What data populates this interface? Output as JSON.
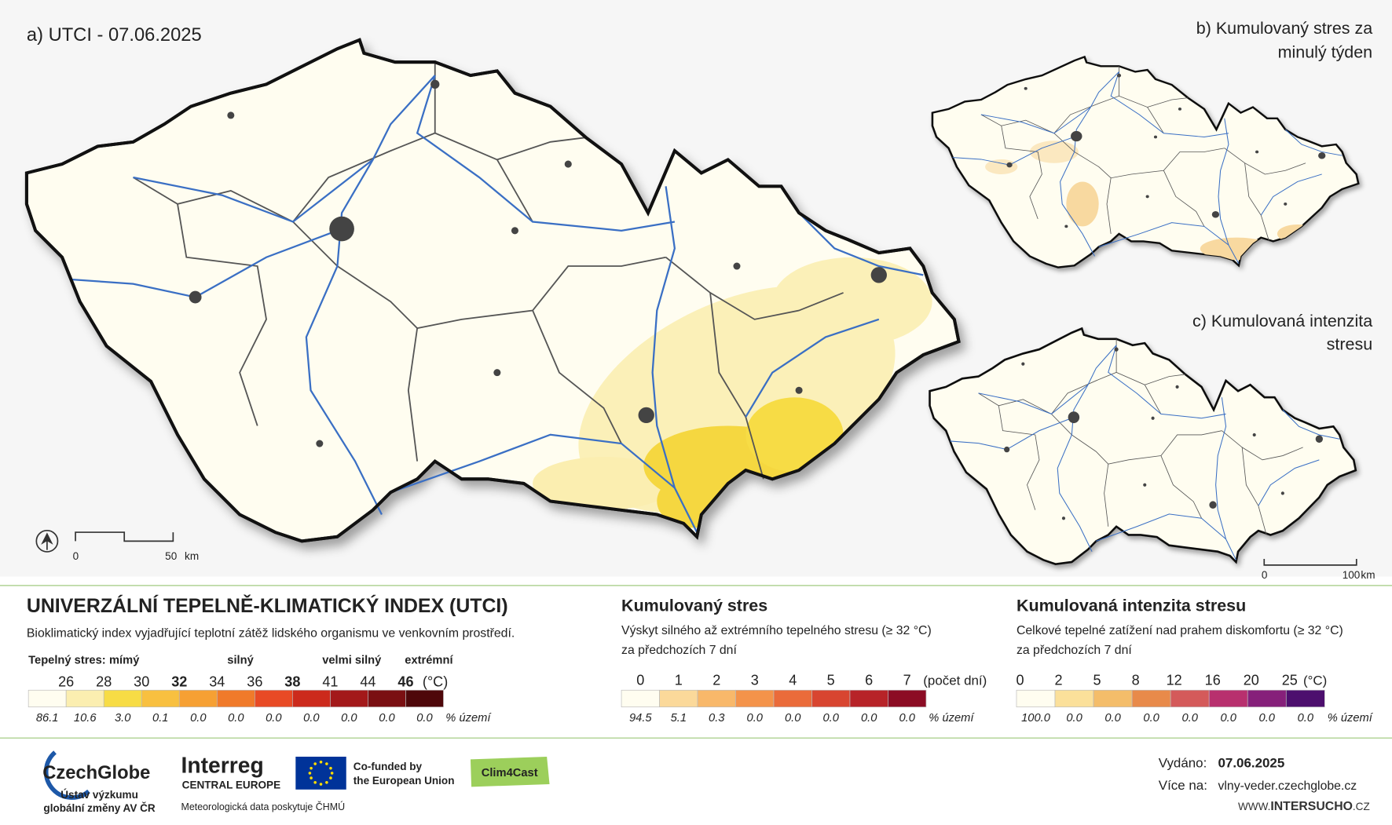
{
  "panel_a": {
    "title": "a) UTCI - 07.06.2025",
    "scale": {
      "start": "0",
      "end": "50",
      "unit": "km"
    }
  },
  "panel_b": {
    "title": [
      "b) Kumulovaný stres za",
      "minulý týden"
    ]
  },
  "panel_c": {
    "title": [
      "c) Kumulovaná intenzita",
      "stresu"
    ],
    "scale": {
      "start": "0",
      "end": "100",
      "unit": "km"
    }
  },
  "legend_utci": {
    "title": "UNIVERZÁLNÍ TEPELNĚ-KLIMATICKÝ INDEX (UTCI)",
    "description": "Bioklimatický index vyjadřující teplotní zátěž lidského organismu ve venkovním prostředí.",
    "stress_label": "Tepelný stres:",
    "stress_levels": [
      "mímý",
      "silný",
      "velmi silný",
      "extrémní"
    ],
    "thresholds": [
      "26",
      "28",
      "30",
      "32",
      "34",
      "36",
      "38",
      "41",
      "44",
      "46"
    ],
    "unit": "(°C)",
    "colors": [
      "#fffdf0",
      "#fbeeb0",
      "#f7dc45",
      "#f8c040",
      "#f6a033",
      "#f07a2a",
      "#e84a25",
      "#cc2a1c",
      "#a3191a",
      "#7a0f12",
      "#4e070a"
    ],
    "shares": [
      "86.1",
      "10.6",
      "3.0",
      "0.1",
      "0.0",
      "0.0",
      "0.0",
      "0.0",
      "0.0",
      "0.0",
      "0.0"
    ],
    "share_unit": "% území"
  },
  "legend_stress": {
    "title": "Kumulovaný stres",
    "description": [
      "Výskyt silného až extrémního tepelného stresu (≥ 32 °C)",
      "za předchozích 7 dní"
    ],
    "ticks": [
      "0",
      "1",
      "2",
      "3",
      "4",
      "5",
      "6",
      "7"
    ],
    "unit": "(počet dní)",
    "colors": [
      "#fffdf0",
      "#fbd99a",
      "#f8b86a",
      "#f4934a",
      "#ea6b3a",
      "#d84530",
      "#b72328",
      "#8c0c24"
    ],
    "shares": [
      "94.5",
      "5.1",
      "0.3",
      "0.0",
      "0.0",
      "0.0",
      "0.0",
      "0.0"
    ],
    "share_unit": "% území"
  },
  "legend_intensity": {
    "title": "Kumulovaná intenzita stresu",
    "description": [
      "Celkové tepelné zatížení nad prahem diskomfortu (≥ 32 °C)",
      "za předchozích 7 dní"
    ],
    "ticks": [
      "0",
      "2",
      "5",
      "8",
      "12",
      "16",
      "20",
      "25"
    ],
    "unit": "(°C)",
    "colors": [
      "#fffdf0",
      "#fbe09a",
      "#f4bd6a",
      "#e88a4a",
      "#d45a5a",
      "#b8306e",
      "#86207a",
      "#4d0f6e"
    ],
    "shares": [
      "100.0",
      "0.0",
      "0.0",
      "0.0",
      "0.0",
      "0.0",
      "0.0",
      "0.0"
    ],
    "share_unit": "% území"
  },
  "footer": {
    "czechglobe": "CzechGlobe",
    "czechglobe_sub": [
      "Ústav výzkumu",
      "globální změny AV ČR"
    ],
    "interreg": "Interreg",
    "interreg_sub": "CENTRAL EUROPE",
    "eu": [
      "Co-funded by",
      "the European Union"
    ],
    "clim4cast": "Clim4Cast",
    "data_note": "Meteorologická data poskytuje ČHMÚ",
    "issued_label": "Vydáno:",
    "issued_date": "07.06.2025",
    "more_label": "Více na:",
    "more_url": "vlny-veder.czechglobe.cz",
    "intersucho": {
      "prefix": "WWW.",
      "name": "INTERSUCHO",
      "suffix": ".CZ"
    }
  }
}
